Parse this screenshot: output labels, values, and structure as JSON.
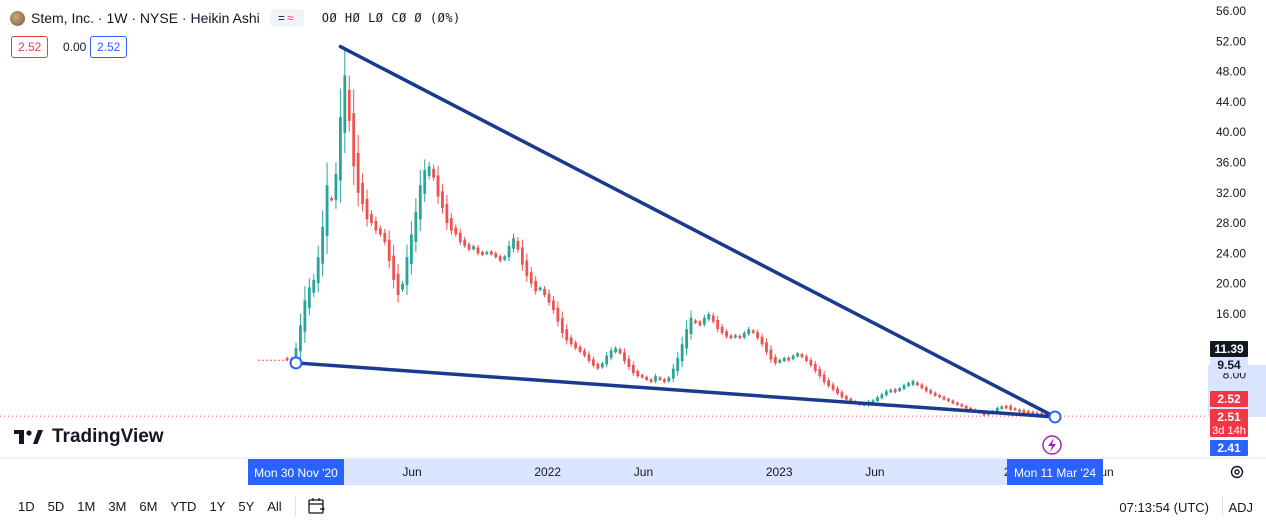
{
  "header": {
    "title": "Stem, Inc. · 1W · NYSE · Heikin Ashi",
    "ohlc_text": "OØ HØ LØ CØ Ø (Ø%)",
    "price_red": "2.52",
    "price_mid": "0.00",
    "price_blue": "2.52"
  },
  "brand": {
    "name": "TradingView"
  },
  "timeframes": [
    "1D",
    "5D",
    "1M",
    "3M",
    "6M",
    "YTD",
    "1Y",
    "5Y",
    "All"
  ],
  "footer": {
    "clock": "07:13:54 (UTC)",
    "adj": "ADJ"
  },
  "colors": {
    "up": "#26a69a",
    "down": "#ef5350",
    "drawing": "#1a3a8f",
    "accent": "#2962ff"
  },
  "chart_data": {
    "type": "candlestick",
    "chart_style": "Heikin Ashi",
    "interval": "1W",
    "y_ticks": [
      56,
      52,
      48,
      44,
      40,
      36,
      32,
      28,
      24,
      20,
      16,
      8
    ],
    "y_tick_labels": [
      "56.00",
      "52.00",
      "48.00",
      "44.00",
      "40.00",
      "36.00",
      "32.00",
      "28.00",
      "24.00",
      "20.00",
      "16.00",
      "8.00"
    ],
    "x_tick_labels": [
      {
        "label": "Jun",
        "date": "2021-06-01"
      },
      {
        "label": "2022",
        "date": "2022-01-01"
      },
      {
        "label": "Jun",
        "date": "2022-06-01"
      },
      {
        "label": "2023",
        "date": "2023-01-01"
      },
      {
        "label": "Jun",
        "date": "2023-06-01"
      },
      {
        "label": "20",
        "date": "2024-01-01"
      },
      {
        "label": "un",
        "date": "2024-06-01"
      }
    ],
    "price_labels": [
      {
        "value": 11.39,
        "text": "11.39",
        "style": "dark"
      },
      {
        "value": 9.54,
        "text": "9.54",
        "style": "blue-light"
      },
      {
        "value": 2.52,
        "text": "2.52",
        "style": "red"
      },
      {
        "value": 2.51,
        "text": "2.51",
        "sub": "3d 14h",
        "style": "red"
      },
      {
        "value": 2.41,
        "text": "2.41",
        "style": "blue"
      }
    ],
    "x_range_labels": [
      "Mon 30 Nov '20",
      "Mon 11 Mar '24"
    ],
    "trendlines": [
      {
        "from": {
          "date": "2020-11-30",
          "price": 9.54
        },
        "to": {
          "date": "2024-03-11",
          "price": 2.41
        }
      },
      {
        "from": {
          "date": "2021-02-08",
          "price": 51.3
        },
        "to": {
          "date": "2024-03-11",
          "price": 2.41
        }
      }
    ],
    "anchors": [
      {
        "date": "2020-11-30",
        "price": 9.54
      },
      {
        "date": "2024-03-11",
        "price": 2.41
      }
    ],
    "candles": [
      {
        "date": "2020-11-16",
        "close": 9.9,
        "color": "down"
      },
      {
        "date": "2020-11-23",
        "close": 9.8,
        "color": "down"
      },
      {
        "date": "2020-11-30",
        "close": 11.5,
        "color": "up"
      },
      {
        "date": "2020-12-07",
        "close": 14.5,
        "color": "up"
      },
      {
        "date": "2020-12-14",
        "close": 17.8,
        "color": "up"
      },
      {
        "date": "2020-12-21",
        "close": 19.5,
        "color": "up"
      },
      {
        "date": "2020-12-28",
        "close": 20.5,
        "color": "up"
      },
      {
        "date": "2021-01-04",
        "close": 23.5,
        "color": "up"
      },
      {
        "date": "2021-01-11",
        "close": 27.5,
        "color": "up"
      },
      {
        "date": "2021-01-18",
        "close": 33.0,
        "color": "up"
      },
      {
        "date": "2021-01-25",
        "close": 31.0,
        "color": "down"
      },
      {
        "date": "2021-02-01",
        "close": 34.5,
        "color": "up"
      },
      {
        "date": "2021-02-08",
        "close": 42.0,
        "color": "up"
      },
      {
        "date": "2021-02-15",
        "close": 47.5,
        "color": "up"
      },
      {
        "date": "2021-02-22",
        "close": 41.5,
        "color": "down"
      },
      {
        "date": "2021-03-01",
        "close": 35.5,
        "color": "down"
      },
      {
        "date": "2021-03-08",
        "close": 32.0,
        "color": "down"
      },
      {
        "date": "2021-03-15",
        "close": 30.5,
        "color": "down"
      },
      {
        "date": "2021-03-22",
        "close": 28.5,
        "color": "down"
      },
      {
        "date": "2021-03-29",
        "close": 28.0,
        "color": "down"
      },
      {
        "date": "2021-04-05",
        "close": 27.0,
        "color": "down"
      },
      {
        "date": "2021-04-12",
        "close": 26.5,
        "color": "down"
      },
      {
        "date": "2021-04-19",
        "close": 25.5,
        "color": "down"
      },
      {
        "date": "2021-04-26",
        "close": 23.0,
        "color": "down"
      },
      {
        "date": "2021-05-03",
        "close": 20.5,
        "color": "down"
      },
      {
        "date": "2021-05-10",
        "close": 18.5,
        "color": "down"
      },
      {
        "date": "2021-05-17",
        "close": 20.0,
        "color": "up"
      },
      {
        "date": "2021-05-24",
        "close": 23.5,
        "color": "up"
      },
      {
        "date": "2021-05-31",
        "close": 26.5,
        "color": "up"
      },
      {
        "date": "2021-06-07",
        "close": 29.5,
        "color": "up"
      },
      {
        "date": "2021-06-14",
        "close": 33.0,
        "color": "up"
      },
      {
        "date": "2021-06-21",
        "close": 35.0,
        "color": "up"
      },
      {
        "date": "2021-06-28",
        "close": 35.5,
        "color": "up"
      },
      {
        "date": "2021-07-05",
        "close": 34.0,
        "color": "down"
      },
      {
        "date": "2021-07-12",
        "close": 31.5,
        "color": "down"
      },
      {
        "date": "2021-07-19",
        "close": 30.0,
        "color": "down"
      },
      {
        "date": "2021-07-26",
        "close": 28.0,
        "color": "down"
      },
      {
        "date": "2021-08-02",
        "close": 27.0,
        "color": "down"
      },
      {
        "date": "2021-08-09",
        "close": 26.5,
        "color": "down"
      },
      {
        "date": "2021-08-16",
        "close": 25.5,
        "color": "down"
      },
      {
        "date": "2021-08-23",
        "close": 25.0,
        "color": "down"
      },
      {
        "date": "2021-08-30",
        "close": 24.5,
        "color": "down"
      },
      {
        "date": "2021-09-06",
        "close": 24.8,
        "color": "up"
      },
      {
        "date": "2021-09-13",
        "close": 24.0,
        "color": "down"
      },
      {
        "date": "2021-09-20",
        "close": 23.8,
        "color": "down"
      },
      {
        "date": "2021-09-27",
        "close": 24.2,
        "color": "up"
      },
      {
        "date": "2021-10-04",
        "close": 24.0,
        "color": "down"
      },
      {
        "date": "2021-10-11",
        "close": 23.5,
        "color": "down"
      },
      {
        "date": "2021-10-18",
        "close": 23.0,
        "color": "down"
      },
      {
        "date": "2021-10-25",
        "close": 23.6,
        "color": "up"
      },
      {
        "date": "2021-11-01",
        "close": 25.0,
        "color": "up"
      },
      {
        "date": "2021-11-08",
        "close": 26.0,
        "color": "up"
      },
      {
        "date": "2021-11-15",
        "close": 24.5,
        "color": "down"
      },
      {
        "date": "2021-11-22",
        "close": 22.5,
        "color": "down"
      },
      {
        "date": "2021-11-29",
        "close": 21.0,
        "color": "down"
      },
      {
        "date": "2021-12-06",
        "close": 20.0,
        "color": "down"
      },
      {
        "date": "2021-12-13",
        "close": 19.0,
        "color": "down"
      },
      {
        "date": "2021-12-20",
        "close": 19.3,
        "color": "up"
      },
      {
        "date": "2021-12-27",
        "close": 18.5,
        "color": "down"
      },
      {
        "date": "2022-01-03",
        "close": 17.5,
        "color": "down"
      },
      {
        "date": "2022-01-10",
        "close": 16.5,
        "color": "down"
      },
      {
        "date": "2022-01-17",
        "close": 15.0,
        "color": "down"
      },
      {
        "date": "2022-01-24",
        "close": 13.5,
        "color": "down"
      },
      {
        "date": "2022-01-31",
        "close": 12.5,
        "color": "down"
      },
      {
        "date": "2022-02-07",
        "close": 12.0,
        "color": "down"
      },
      {
        "date": "2022-02-14",
        "close": 11.5,
        "color": "down"
      },
      {
        "date": "2022-02-21",
        "close": 11.0,
        "color": "down"
      },
      {
        "date": "2022-02-28",
        "close": 10.5,
        "color": "down"
      },
      {
        "date": "2022-03-07",
        "close": 9.8,
        "color": "down"
      },
      {
        "date": "2022-03-14",
        "close": 9.2,
        "color": "down"
      },
      {
        "date": "2022-03-21",
        "close": 8.8,
        "color": "down"
      },
      {
        "date": "2022-03-28",
        "close": 9.5,
        "color": "up"
      },
      {
        "date": "2022-04-04",
        "close": 10.5,
        "color": "up"
      },
      {
        "date": "2022-04-11",
        "close": 11.2,
        "color": "up"
      },
      {
        "date": "2022-04-18",
        "close": 11.5,
        "color": "up"
      },
      {
        "date": "2022-04-25",
        "close": 10.8,
        "color": "down"
      },
      {
        "date": "2022-05-02",
        "close": 9.8,
        "color": "down"
      },
      {
        "date": "2022-05-09",
        "close": 9.0,
        "color": "down"
      },
      {
        "date": "2022-05-16",
        "close": 8.2,
        "color": "down"
      },
      {
        "date": "2022-05-23",
        "close": 7.8,
        "color": "down"
      },
      {
        "date": "2022-05-30",
        "close": 7.6,
        "color": "down"
      },
      {
        "date": "2022-06-06",
        "close": 7.3,
        "color": "down"
      },
      {
        "date": "2022-06-13",
        "close": 7.0,
        "color": "down"
      },
      {
        "date": "2022-06-20",
        "close": 7.8,
        "color": "up"
      },
      {
        "date": "2022-06-27",
        "close": 7.3,
        "color": "down"
      },
      {
        "date": "2022-07-04",
        "close": 7.0,
        "color": "down"
      },
      {
        "date": "2022-07-11",
        "close": 7.6,
        "color": "up"
      },
      {
        "date": "2022-07-18",
        "close": 8.8,
        "color": "up"
      },
      {
        "date": "2022-07-25",
        "close": 10.2,
        "color": "up"
      },
      {
        "date": "2022-08-01",
        "close": 12.0,
        "color": "up"
      },
      {
        "date": "2022-08-08",
        "close": 14.0,
        "color": "up"
      },
      {
        "date": "2022-08-15",
        "close": 15.5,
        "color": "up"
      },
      {
        "date": "2022-08-22",
        "close": 15.0,
        "color": "down"
      },
      {
        "date": "2022-08-29",
        "close": 14.5,
        "color": "down"
      },
      {
        "date": "2022-09-05",
        "close": 15.5,
        "color": "up"
      },
      {
        "date": "2022-09-12",
        "close": 16.0,
        "color": "up"
      },
      {
        "date": "2022-09-19",
        "close": 15.0,
        "color": "down"
      },
      {
        "date": "2022-09-26",
        "close": 14.0,
        "color": "down"
      },
      {
        "date": "2022-10-03",
        "close": 13.5,
        "color": "down"
      },
      {
        "date": "2022-10-10",
        "close": 13.0,
        "color": "down"
      },
      {
        "date": "2022-10-17",
        "close": 12.8,
        "color": "down"
      },
      {
        "date": "2022-10-24",
        "close": 13.2,
        "color": "up"
      },
      {
        "date": "2022-10-31",
        "close": 12.8,
        "color": "down"
      },
      {
        "date": "2022-11-07",
        "close": 13.5,
        "color": "up"
      },
      {
        "date": "2022-11-14",
        "close": 14.0,
        "color": "up"
      },
      {
        "date": "2022-11-21",
        "close": 13.5,
        "color": "down"
      },
      {
        "date": "2022-11-28",
        "close": 12.8,
        "color": "down"
      },
      {
        "date": "2022-12-05",
        "close": 12.0,
        "color": "down"
      },
      {
        "date": "2022-12-12",
        "close": 11.0,
        "color": "down"
      },
      {
        "date": "2022-12-19",
        "close": 10.0,
        "color": "down"
      },
      {
        "date": "2022-12-26",
        "close": 9.5,
        "color": "down"
      },
      {
        "date": "2023-01-02",
        "close": 9.8,
        "color": "up"
      },
      {
        "date": "2023-01-09",
        "close": 10.2,
        "color": "up"
      },
      {
        "date": "2023-01-16",
        "close": 10.0,
        "color": "down"
      },
      {
        "date": "2023-01-23",
        "close": 10.5,
        "color": "up"
      },
      {
        "date": "2023-01-30",
        "close": 10.8,
        "color": "up"
      },
      {
        "date": "2023-02-06",
        "close": 10.3,
        "color": "down"
      },
      {
        "date": "2023-02-13",
        "close": 9.8,
        "color": "down"
      },
      {
        "date": "2023-02-20",
        "close": 9.2,
        "color": "down"
      },
      {
        "date": "2023-02-27",
        "close": 8.5,
        "color": "down"
      },
      {
        "date": "2023-03-06",
        "close": 7.8,
        "color": "down"
      },
      {
        "date": "2023-03-13",
        "close": 7.0,
        "color": "down"
      },
      {
        "date": "2023-03-20",
        "close": 6.5,
        "color": "down"
      },
      {
        "date": "2023-03-27",
        "close": 6.0,
        "color": "down"
      },
      {
        "date": "2023-04-03",
        "close": 5.5,
        "color": "down"
      },
      {
        "date": "2023-04-10",
        "close": 5.0,
        "color": "down"
      },
      {
        "date": "2023-04-17",
        "close": 4.7,
        "color": "down"
      },
      {
        "date": "2023-04-24",
        "close": 4.4,
        "color": "down"
      },
      {
        "date": "2023-05-01",
        "close": 4.2,
        "color": "down"
      },
      {
        "date": "2023-05-08",
        "close": 4.0,
        "color": "down"
      },
      {
        "date": "2023-05-15",
        "close": 4.1,
        "color": "up"
      },
      {
        "date": "2023-05-22",
        "close": 4.3,
        "color": "up"
      },
      {
        "date": "2023-05-29",
        "close": 4.6,
        "color": "up"
      },
      {
        "date": "2023-06-05",
        "close": 5.0,
        "color": "up"
      },
      {
        "date": "2023-06-12",
        "close": 5.4,
        "color": "up"
      },
      {
        "date": "2023-06-19",
        "close": 5.8,
        "color": "up"
      },
      {
        "date": "2023-06-26",
        "close": 6.0,
        "color": "up"
      },
      {
        "date": "2023-07-03",
        "close": 5.8,
        "color": "down"
      },
      {
        "date": "2023-07-10",
        "close": 6.2,
        "color": "up"
      },
      {
        "date": "2023-07-17",
        "close": 6.6,
        "color": "up"
      },
      {
        "date": "2023-07-24",
        "close": 6.9,
        "color": "up"
      },
      {
        "date": "2023-07-31",
        "close": 7.0,
        "color": "up"
      },
      {
        "date": "2023-08-07",
        "close": 6.6,
        "color": "down"
      },
      {
        "date": "2023-08-14",
        "close": 6.2,
        "color": "down"
      },
      {
        "date": "2023-08-21",
        "close": 5.8,
        "color": "down"
      },
      {
        "date": "2023-08-28",
        "close": 5.5,
        "color": "down"
      },
      {
        "date": "2023-09-04",
        "close": 5.2,
        "color": "down"
      },
      {
        "date": "2023-09-11",
        "close": 5.0,
        "color": "down"
      },
      {
        "date": "2023-09-18",
        "close": 4.7,
        "color": "down"
      },
      {
        "date": "2023-09-25",
        "close": 4.5,
        "color": "down"
      },
      {
        "date": "2023-10-02",
        "close": 4.2,
        "color": "down"
      },
      {
        "date": "2023-10-09",
        "close": 4.0,
        "color": "down"
      },
      {
        "date": "2023-10-16",
        "close": 3.8,
        "color": "down"
      },
      {
        "date": "2023-10-23",
        "close": 3.5,
        "color": "down"
      },
      {
        "date": "2023-10-30",
        "close": 3.3,
        "color": "down"
      },
      {
        "date": "2023-11-06",
        "close": 3.1,
        "color": "down"
      },
      {
        "date": "2023-11-13",
        "close": 2.9,
        "color": "down"
      },
      {
        "date": "2023-11-20",
        "close": 2.8,
        "color": "down"
      },
      {
        "date": "2023-11-27",
        "close": 2.9,
        "color": "up"
      },
      {
        "date": "2023-12-04",
        "close": 3.2,
        "color": "up"
      },
      {
        "date": "2023-12-11",
        "close": 3.6,
        "color": "up"
      },
      {
        "date": "2023-12-18",
        "close": 3.8,
        "color": "up"
      },
      {
        "date": "2023-12-25",
        "close": 3.7,
        "color": "down"
      },
      {
        "date": "2024-01-01",
        "close": 3.5,
        "color": "down"
      },
      {
        "date": "2024-01-08",
        "close": 3.3,
        "color": "down"
      },
      {
        "date": "2024-01-15",
        "close": 3.1,
        "color": "down"
      },
      {
        "date": "2024-01-22",
        "close": 3.0,
        "color": "down"
      },
      {
        "date": "2024-01-29",
        "close": 2.9,
        "color": "down"
      },
      {
        "date": "2024-02-05",
        "close": 2.8,
        "color": "down"
      },
      {
        "date": "2024-02-12",
        "close": 2.75,
        "color": "down"
      },
      {
        "date": "2024-02-19",
        "close": 2.7,
        "color": "down"
      },
      {
        "date": "2024-02-26",
        "close": 2.6,
        "color": "down"
      },
      {
        "date": "2024-03-04",
        "close": 2.55,
        "color": "down"
      },
      {
        "date": "2024-03-11",
        "close": 2.52,
        "color": "down"
      }
    ]
  }
}
